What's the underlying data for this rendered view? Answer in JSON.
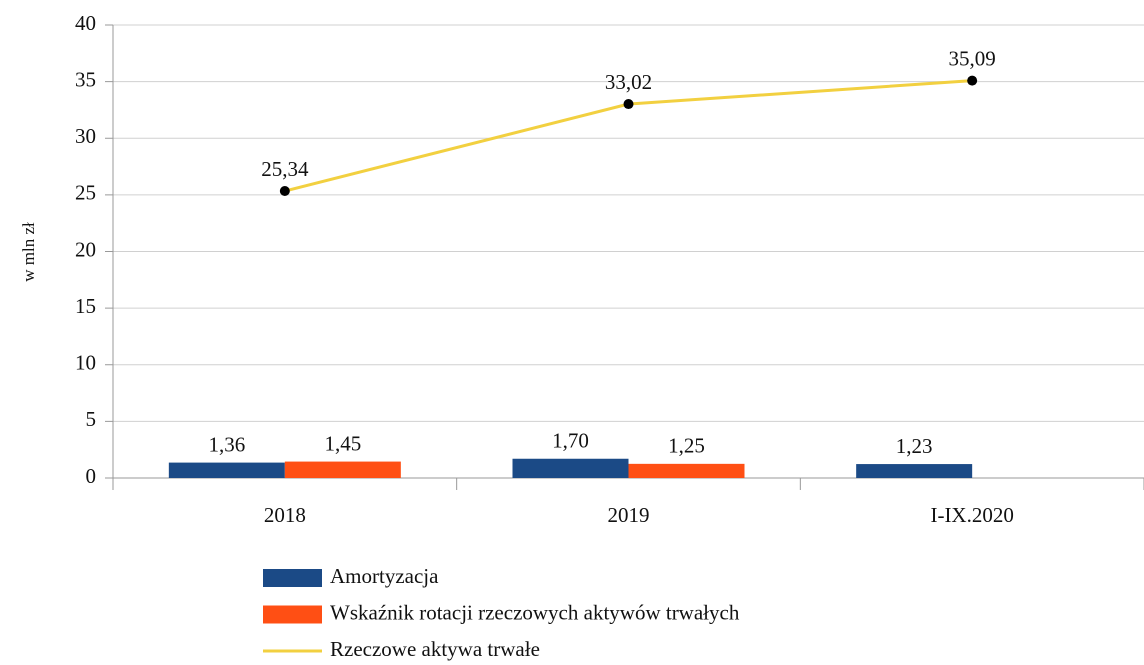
{
  "chart_data": {
    "type": "bar",
    "y_axis_label": "w mln zł",
    "categories": [
      "2018",
      "2019",
      "I-IX.2020"
    ],
    "series": [
      {
        "name": "Amortyzacja",
        "type": "bar",
        "color": "#1b4a86",
        "values": [
          1.36,
          1.7,
          1.23
        ],
        "value_labels": [
          "1,36",
          "1,70",
          "1,23"
        ]
      },
      {
        "name": "Wskaźnik rotacji rzeczowych aktywów trwałych",
        "type": "bar",
        "color": "#ff4f14",
        "values": [
          1.45,
          1.25,
          null
        ],
        "value_labels": [
          "1,45",
          "1,25",
          null
        ]
      },
      {
        "name": "Rzeczowe aktywa trwałe",
        "type": "line",
        "color": "#f2d040",
        "values": [
          25.34,
          33.02,
          35.09
        ],
        "value_labels": [
          "25,34",
          "33,02",
          "35,09"
        ]
      }
    ],
    "ylim": [
      0,
      40
    ],
    "yticks": [
      0,
      5,
      10,
      15,
      20,
      25,
      30,
      35,
      40
    ],
    "grid": true,
    "legend": "bottom"
  }
}
